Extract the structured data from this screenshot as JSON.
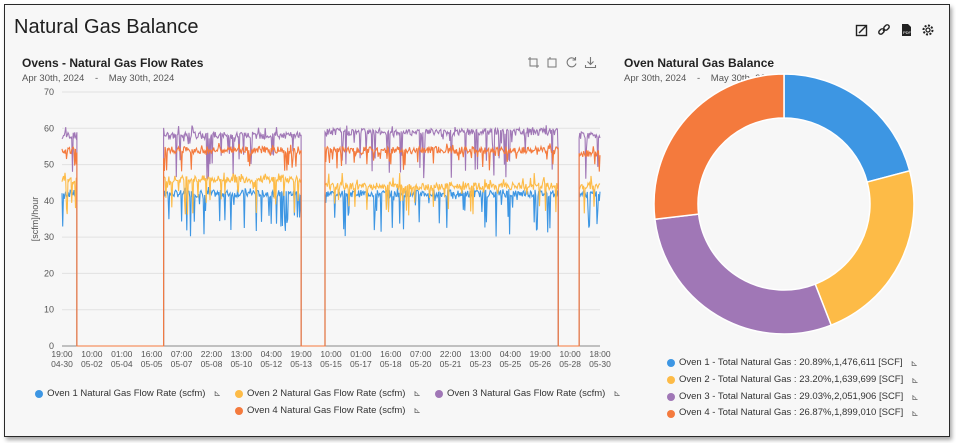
{
  "page": {
    "title": "Natural Gas Balance"
  },
  "toolbar": {
    "icons": [
      "edit-icon",
      "link-icon",
      "pdf-icon",
      "gear-icon"
    ]
  },
  "flow_panel": {
    "title": "Ovens - Natural Gas Flow Rates",
    "date_from": "Apr 30th, 2024",
    "date_sep": "-",
    "date_to": "May 30th, 2024",
    "tools": [
      "zoom-icon",
      "zoom-reset-icon",
      "refresh-icon",
      "download-icon"
    ]
  },
  "balance_panel": {
    "title": "Oven Natural Gas Balance",
    "date_from": "Apr 30th, 2024",
    "date_sep": "-",
    "date_to": "May 30th, 2024"
  },
  "colors": {
    "oven1": "#3d96e3",
    "oven2": "#fdbb47",
    "oven3": "#a077b6",
    "oven4": "#f47a3d"
  },
  "chart_data": [
    {
      "type": "line",
      "title": "Ovens - Natural Gas Flow Rates",
      "ylabel": "[scfm]/hour",
      "ylim": [
        0,
        70
      ],
      "yticks": [
        0,
        10,
        20,
        30,
        40,
        50,
        60,
        70
      ],
      "xticks": [
        [
          "19:00",
          "04-30"
        ],
        [
          "10:00",
          "05-02"
        ],
        [
          "01:00",
          "05-04"
        ],
        [
          "16:00",
          "05-05"
        ],
        [
          "07:00",
          "05-07"
        ],
        [
          "22:00",
          "05-08"
        ],
        [
          "13:00",
          "05-10"
        ],
        [
          "04:00",
          "05-12"
        ],
        [
          "19:00",
          "05-13"
        ],
        [
          "10:00",
          "05-15"
        ],
        [
          "01:00",
          "05-17"
        ],
        [
          "16:00",
          "05-18"
        ],
        [
          "07:00",
          "05-20"
        ],
        [
          "22:00",
          "05-21"
        ],
        [
          "13:00",
          "05-23"
        ],
        [
          "04:00",
          "05-25"
        ],
        [
          "19:00",
          "05-26"
        ],
        [
          "10:00",
          "05-28"
        ],
        [
          "18:00",
          "05-30"
        ]
      ],
      "grid": true,
      "legend_position": "bottom",
      "series": [
        {
          "name": "Oven 1 Natural Gas Flow Rate (scfm)",
          "color": "#3d96e3",
          "segments": [
            {
              "x0": 0.0,
              "x1": 0.5,
              "base": 42
            },
            {
              "x0": 0.5,
              "x1": 3.4,
              "base": 0
            },
            {
              "x0": 3.4,
              "x1": 8.0,
              "base": 42
            },
            {
              "x0": 8.0,
              "x1": 8.8,
              "base": 0
            },
            {
              "x0": 8.8,
              "x1": 16.6,
              "base": 42
            },
            {
              "x0": 16.6,
              "x1": 17.3,
              "base": 0
            },
            {
              "x0": 17.3,
              "x1": 18.0,
              "base": 42
            }
          ],
          "noise": [
            30,
            44
          ]
        },
        {
          "name": "Oven 2 Natural Gas Flow Rate (scfm)",
          "color": "#fdbb47",
          "segments": [
            {
              "x0": 0.0,
              "x1": 0.5,
              "base": 46
            },
            {
              "x0": 0.5,
              "x1": 3.4,
              "base": 0
            },
            {
              "x0": 3.4,
              "x1": 8.0,
              "base": 46
            },
            {
              "x0": 8.0,
              "x1": 8.8,
              "base": 0
            },
            {
              "x0": 8.8,
              "x1": 16.6,
              "base": 44
            },
            {
              "x0": 16.6,
              "x1": 17.3,
              "base": 0
            },
            {
              "x0": 17.3,
              "x1": 18.0,
              "base": 44
            }
          ],
          "noise": [
            36,
            48
          ]
        },
        {
          "name": "Oven 3 Natural Gas Flow Rate (scfm)",
          "color": "#a077b6",
          "segments": [
            {
              "x0": 0.0,
              "x1": 0.5,
              "base": 58
            },
            {
              "x0": 0.5,
              "x1": 3.4,
              "base": 0
            },
            {
              "x0": 3.4,
              "x1": 8.0,
              "base": 58
            },
            {
              "x0": 8.0,
              "x1": 8.8,
              "base": 0
            },
            {
              "x0": 8.8,
              "x1": 16.6,
              "base": 59
            },
            {
              "x0": 16.6,
              "x1": 17.3,
              "base": 0
            },
            {
              "x0": 17.3,
              "x1": 18.0,
              "base": 58
            }
          ],
          "noise": [
            46,
            61
          ]
        },
        {
          "name": "Oven 4 Natural Gas Flow Rate (scfm)",
          "color": "#f47a3d",
          "segments": [
            {
              "x0": 0.0,
              "x1": 0.5,
              "base": 54
            },
            {
              "x0": 0.5,
              "x1": 3.4,
              "base": 0
            },
            {
              "x0": 3.4,
              "x1": 8.0,
              "base": 54
            },
            {
              "x0": 8.0,
              "x1": 8.8,
              "base": 0
            },
            {
              "x0": 8.8,
              "x1": 16.6,
              "base": 54
            },
            {
              "x0": 16.6,
              "x1": 17.3,
              "base": 0
            },
            {
              "x0": 17.3,
              "x1": 18.0,
              "base": 53
            }
          ],
          "noise": [
            48,
            56
          ]
        }
      ]
    },
    {
      "type": "pie",
      "title": "Oven Natural Gas Balance",
      "donut": true,
      "slices": [
        {
          "label": "Oven 1 - Total Natural Gas : 20.89%,1,476,611 [SCF]",
          "value": 20.89,
          "color": "#3d96e3"
        },
        {
          "label": "Oven 2 - Total Natural Gas : 23.20%,1,639,699 [SCF]",
          "value": 23.2,
          "color": "#fdbb47"
        },
        {
          "label": "Oven 3 - Total Natural Gas : 29.03%,2,051,906 [SCF]",
          "value": 29.03,
          "color": "#a077b6"
        },
        {
          "label": "Oven 4 - Total Natural Gas : 26.87%,1,899,010 [SCF]",
          "value": 26.87,
          "color": "#f47a3d"
        }
      ]
    }
  ]
}
